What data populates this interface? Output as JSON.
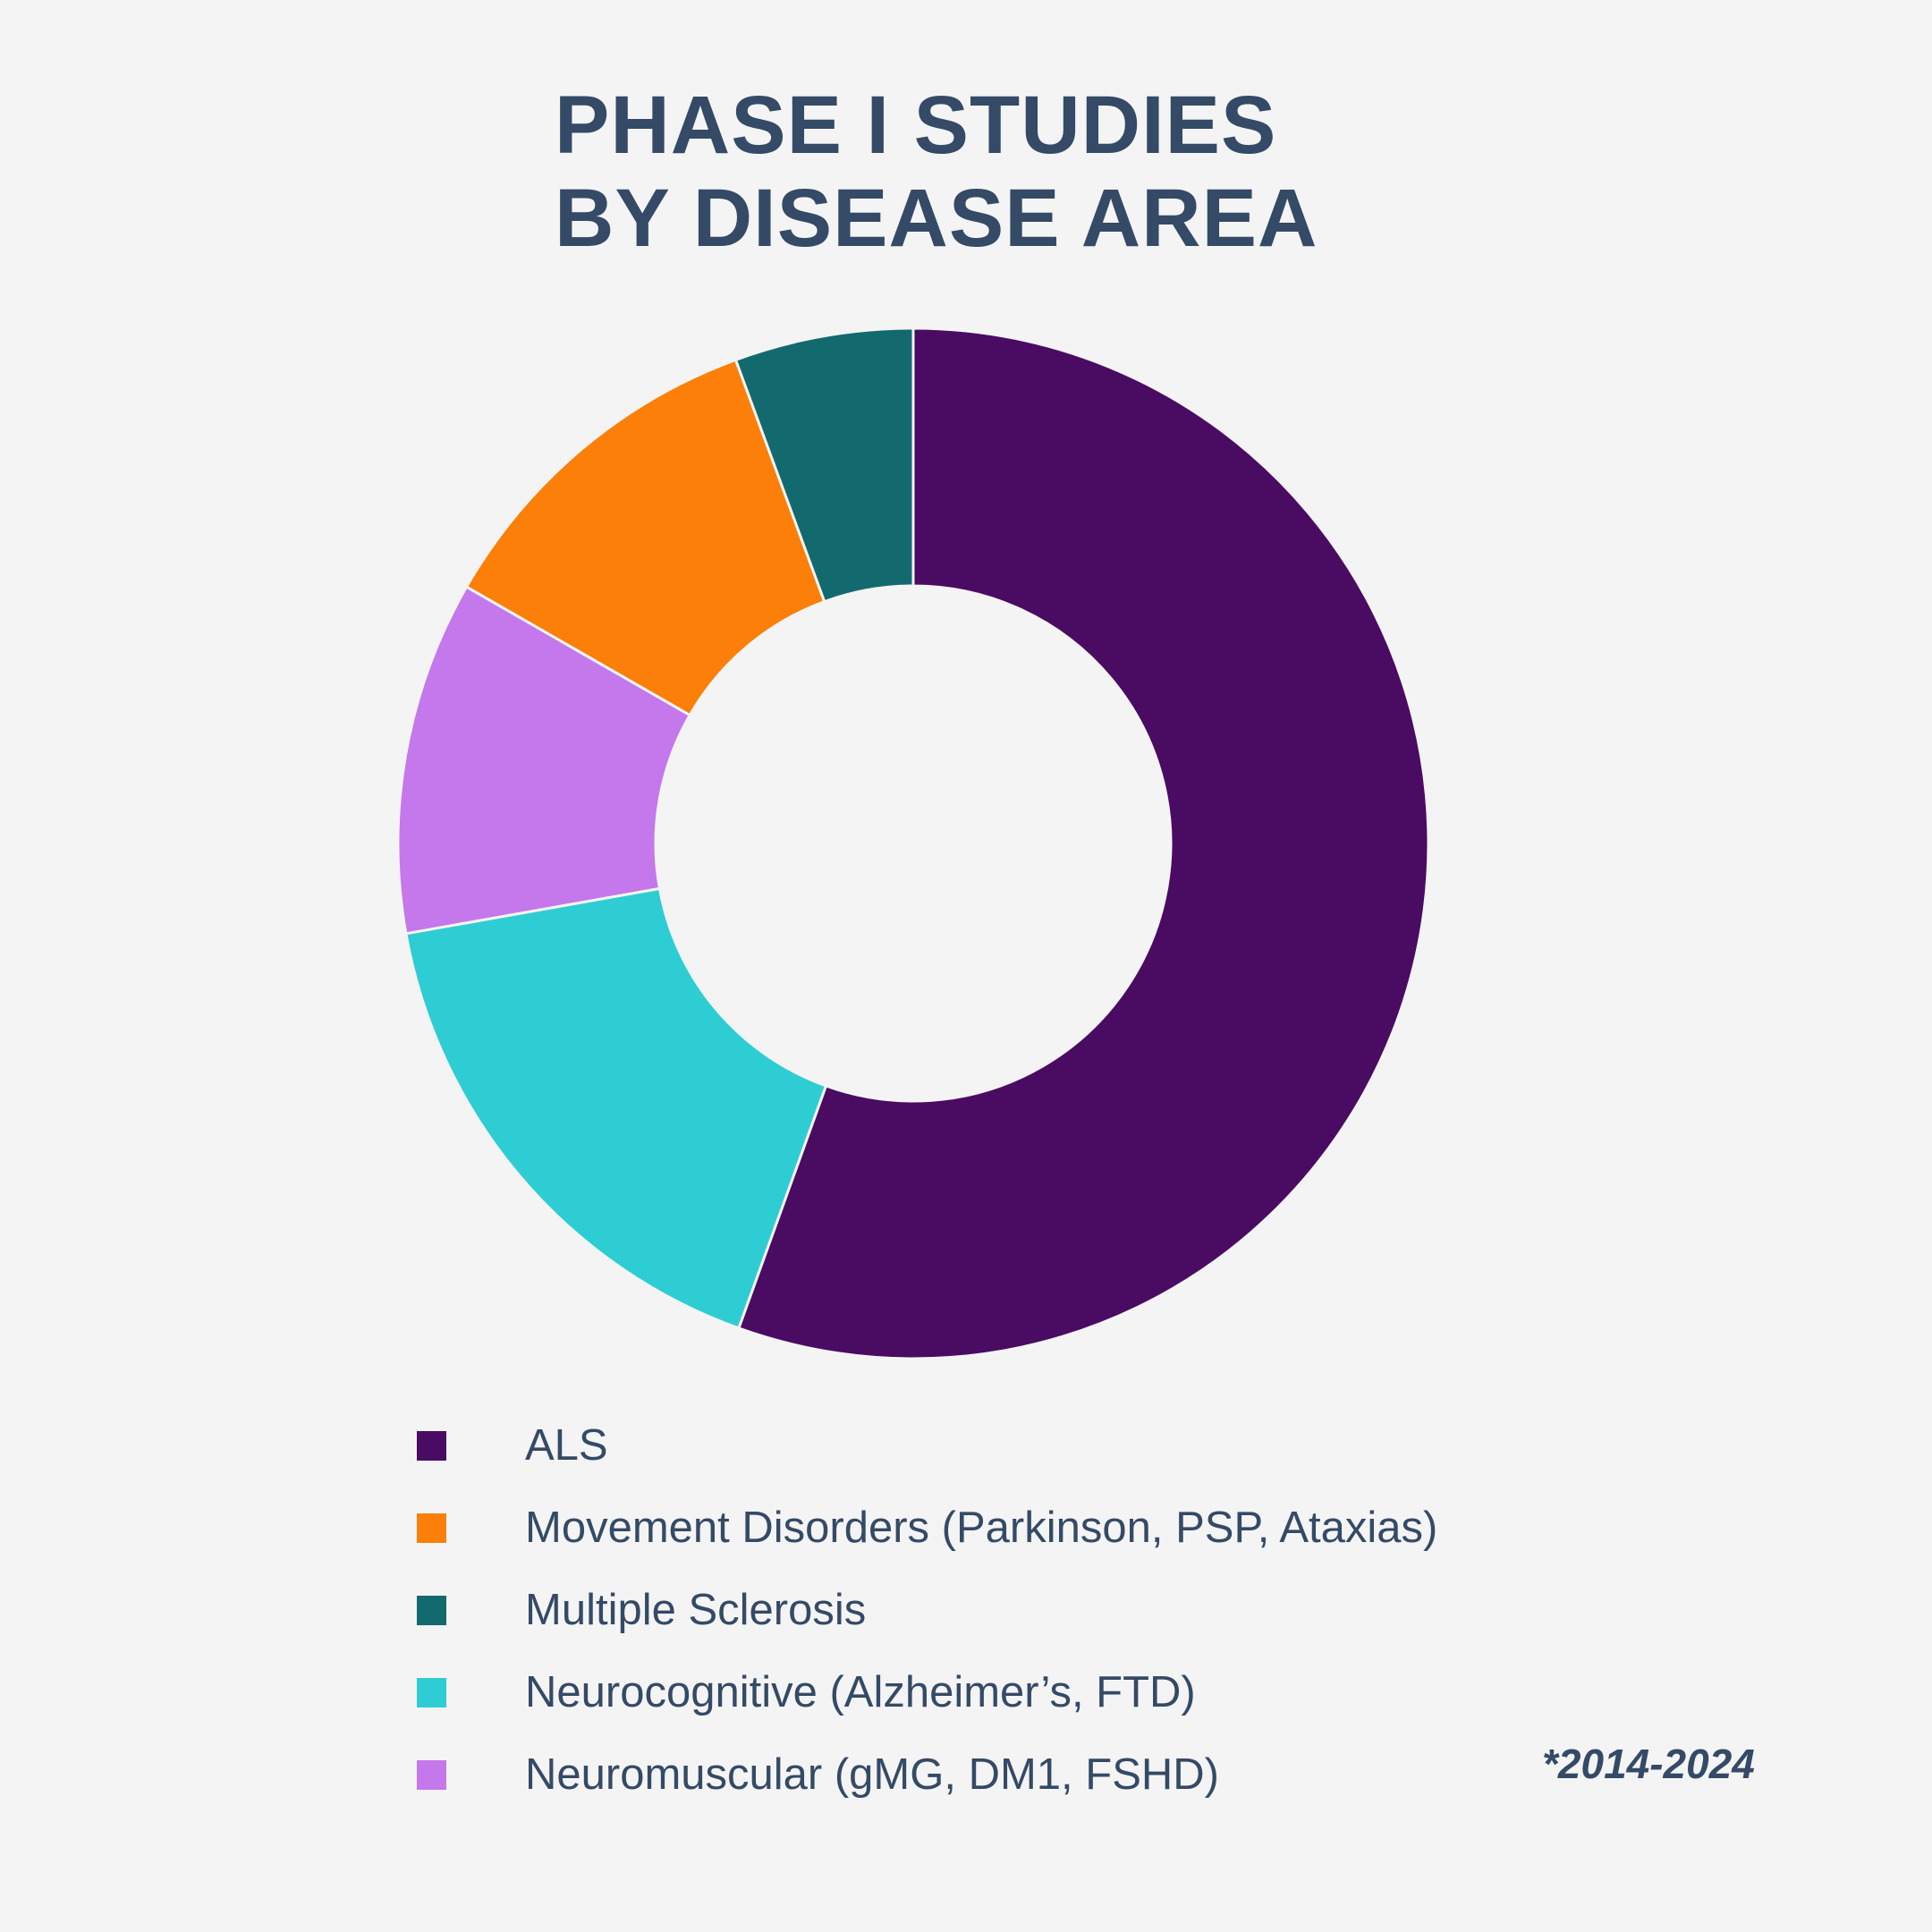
{
  "chart_data": {
    "type": "pie",
    "title": [
      "PHASE I STUDIES",
      "BY DISEASE AREA"
    ],
    "categories": [
      "ALS",
      "Neurocognitive (Alzheimer’s, FTD)",
      "Neuromuscular (gMG, DM1, FSHD)",
      "Movement Disorders (Parkinson, PSP, Ataxias)",
      "Multiple Sclerosis"
    ],
    "values": [
      55.5,
      16.7,
      11.1,
      11.1,
      5.6
    ],
    "colors": [
      "#4a0b62",
      "#2ecdd3",
      "#c478eb",
      "#fb7f08",
      "#136a6e"
    ],
    "legend": {
      "placement": "bottom",
      "items": [
        {
          "label": "ALS",
          "color": "#4a0b62"
        },
        {
          "label": "Movement Disorders (Parkinson, PSP, Ataxias)",
          "color": "#fb7f08"
        },
        {
          "label": "Multiple Sclerosis",
          "color": "#136a6e"
        },
        {
          "label": "Neurocognitive (Alzheimer’s, FTD)",
          "color": "#2ecdd3"
        },
        {
          "label": "Neuromuscular (gMG, DM1, FSHD)",
          "color": "#c478eb"
        }
      ]
    },
    "footnote": "*2014-2024",
    "hole": 0.5
  }
}
